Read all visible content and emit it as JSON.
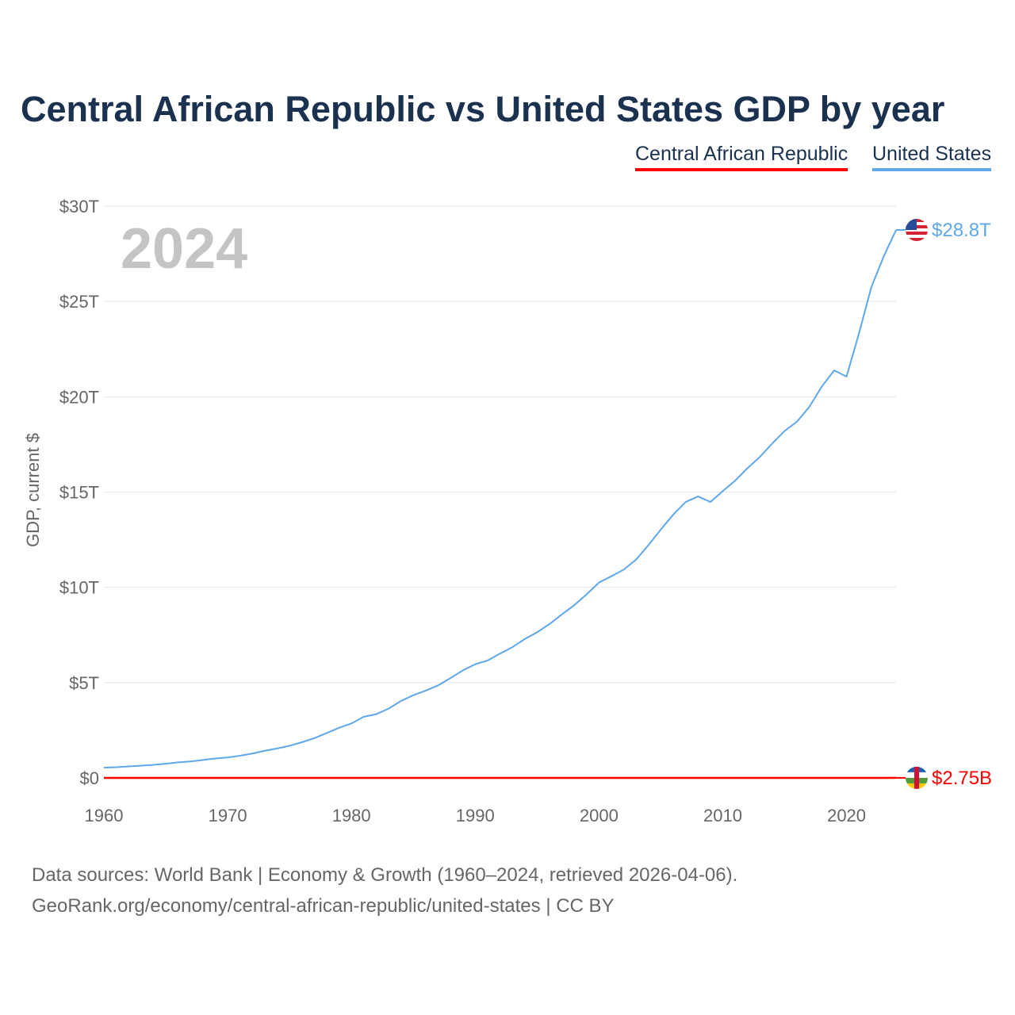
{
  "chart_data": {
    "type": "line",
    "title": "Central African Republic vs United States GDP by year",
    "ylabel": "GDP, current $",
    "xlabel": "",
    "ylim": [
      0,
      30
    ],
    "xlim": [
      1960,
      2024
    ],
    "grid": true,
    "legend_placement": "top-right",
    "year_label": "2024",
    "y_ticks": [
      {
        "v": 0,
        "label": "$0"
      },
      {
        "v": 5,
        "label": "$5T"
      },
      {
        "v": 10,
        "label": "$10T"
      },
      {
        "v": 15,
        "label": "$15T"
      },
      {
        "v": 20,
        "label": "$20T"
      },
      {
        "v": 25,
        "label": "$25T"
      },
      {
        "v": 30,
        "label": "$30T"
      }
    ],
    "x_ticks": [
      {
        "v": 1960,
        "label": "1960"
      },
      {
        "v": 1970,
        "label": "1970"
      },
      {
        "v": 1980,
        "label": "1980"
      },
      {
        "v": 1990,
        "label": "1990"
      },
      {
        "v": 2000,
        "label": "2000"
      },
      {
        "v": 2010,
        "label": "2010"
      },
      {
        "v": 2020,
        "label": "2020"
      }
    ],
    "x_start": 1960,
    "series": [
      {
        "name": "Central African Republic",
        "color": "#ff0000",
        "unit": "trillions USD",
        "end_label": "$2.75B",
        "flag": "central-african-republic",
        "values": [
          0.00011,
          0.00012,
          0.00013,
          0.00014,
          0.00015,
          0.00016,
          0.00017,
          0.00018,
          0.00019,
          0.0002,
          0.00021,
          0.00023,
          0.00026,
          0.00033,
          0.00036,
          0.00047,
          0.00054,
          0.0006,
          0.00066,
          0.00081,
          0.0008,
          0.00069,
          0.00066,
          0.00064,
          0.0006,
          0.00087,
          0.00113,
          0.00121,
          0.00124,
          0.00124,
          0.00149,
          0.00144,
          0.00147,
          0.00127,
          0.00088,
          0.00113,
          0.00106,
          0.00095,
          0.00102,
          0.00105,
          0.00095,
          0.00096,
          0.00103,
          0.00114,
          0.00127,
          0.00135,
          0.00147,
          0.0017,
          0.00198,
          0.00198,
          0.00207,
          0.00228,
          0.00222,
          0.00153,
          0.00171,
          0.00158,
          0.00176,
          0.00198,
          0.00222,
          0.00222,
          0.00233,
          0.00252,
          0.00238,
          0.00255,
          0.00275
        ]
      },
      {
        "name": "United States",
        "color": "#5ea7ea",
        "unit": "trillions USD",
        "end_label": "$28.8T",
        "flag": "united-states",
        "values": [
          0.543,
          0.563,
          0.605,
          0.638,
          0.686,
          0.744,
          0.815,
          0.862,
          0.943,
          1.019,
          1.073,
          1.165,
          1.28,
          1.425,
          1.545,
          1.684,
          1.873,
          2.082,
          2.352,
          2.627,
          2.857,
          3.207,
          3.343,
          3.634,
          4.037,
          4.339,
          4.58,
          4.855,
          5.236,
          5.642,
          5.963,
          6.158,
          6.52,
          6.859,
          7.287,
          7.64,
          8.073,
          8.578,
          9.063,
          9.631,
          10.251,
          10.582,
          10.929,
          11.457,
          12.217,
          13.039,
          13.816,
          14.474,
          14.77,
          14.478,
          15.049,
          15.6,
          16.254,
          16.843,
          17.551,
          18.206,
          18.695,
          19.477,
          20.533,
          21.381,
          21.06,
          23.315,
          25.744,
          27.361,
          28.75
        ]
      }
    ]
  },
  "source": {
    "line1": "Data sources: World Bank | Economy & Growth (1960–2024, retrieved 2026-04-06).",
    "line2": "GeoRank.org/economy/central-african-republic/united-states | CC BY"
  }
}
